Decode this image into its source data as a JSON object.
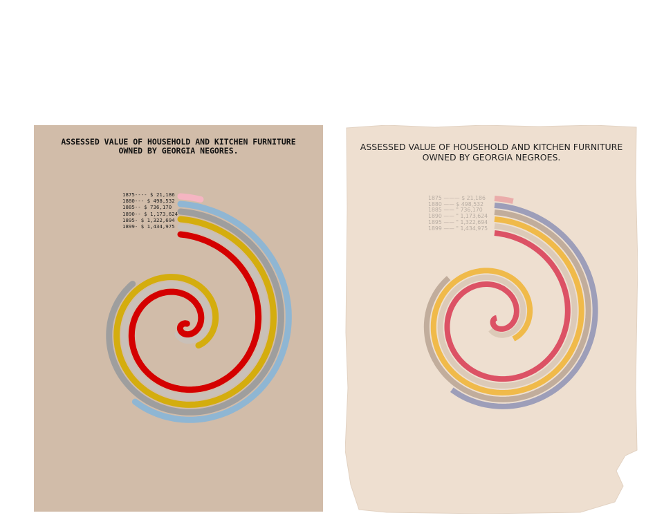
{
  "left": {
    "title": "ASSESSED VALUE OF HOUSEHOLD AND KITCHEN FURNITURE\nOWNED BY GEORGIA NEGORES.",
    "legend": [
      "1875---- $ 21,186",
      "1880--- $ 498,532",
      "1885-- $ 736,170",
      "1890-- $ 1,173,624",
      "1895- $ 1,322,694",
      "1899- $ 1,434,975"
    ]
  },
  "right": {
    "title": "ASSESSED VALUE OF HOUSEHOLD AND KITCHEN FURNITURE\nOWNED BY GEORGIA NEGROES.",
    "legend": [
      "1875 ——— $ 21,186",
      "1880 —— $ 498,532",
      "1885 —— \" 736,170",
      "1890 —— \" 1,173,624",
      "1895 —— \" 1,322,694",
      "1899 —— \" 1,434,975"
    ]
  },
  "chart_data": [
    {
      "type": "spiral-bar",
      "title": "ASSESSED VALUE OF HOUSEHOLD AND KITCHEN FURNITURE OWNED BY GEORGIA NEGORES.",
      "categories": [
        "1875",
        "1880",
        "1885",
        "1890",
        "1895",
        "1899"
      ],
      "values": [
        21186,
        498532,
        736170,
        1173624,
        1322694,
        1434975
      ],
      "colors": [
        "#f5b5c2",
        "#8fb6d3",
        "#9e9e9e",
        "#d4ad0e",
        "#c9c0b8",
        "#d40000"
      ]
    },
    {
      "type": "spiral-bar",
      "title": "ASSESSED VALUE OF HOUSEHOLD AND KITCHEN FURNITURE OWNED BY GEORGIA NEGROES.",
      "categories": [
        "1875",
        "1880",
        "1885",
        "1890",
        "1895",
        "1899"
      ],
      "values": [
        21186,
        498532,
        736170,
        1173624,
        1322694,
        1434975
      ],
      "colors": [
        "#e9a3a3",
        "#8e93b5",
        "#b9a493",
        "#f0b432",
        "#d8c7b4",
        "#d83a52"
      ]
    }
  ]
}
